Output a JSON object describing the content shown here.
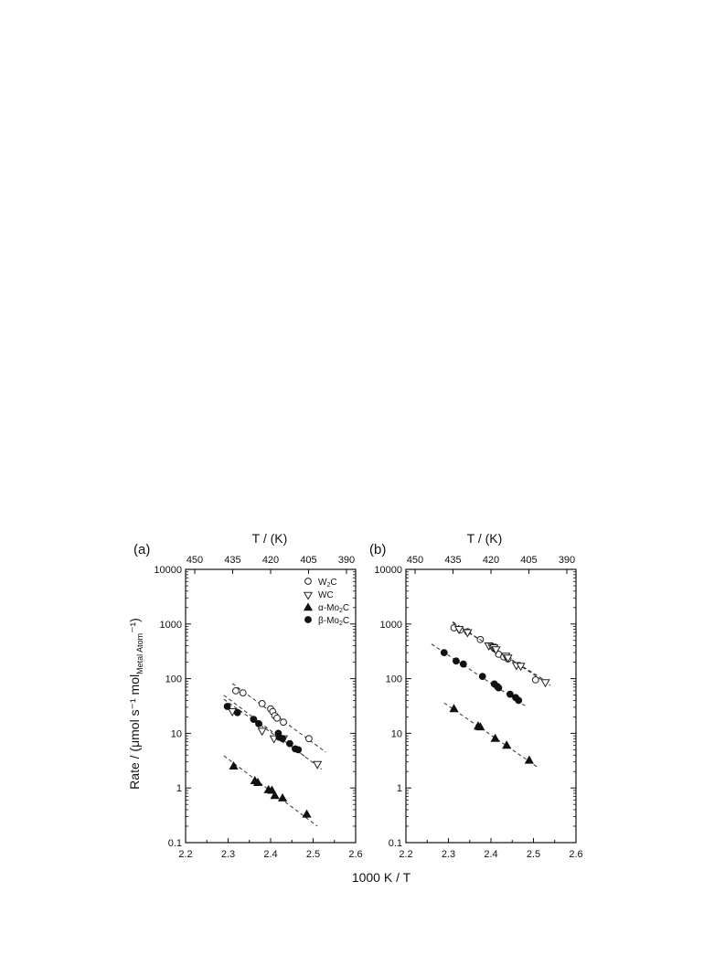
{
  "chart_data": [
    {
      "type": "scatter",
      "panel_label": "(a)",
      "xlabel": "1000 K / T",
      "ylabel": "Rate / (μmol s⁻¹ mol",
      "ylabel_sub": "Metal Atom",
      "ylabel_tail": "⁻¹)",
      "xlim": [
        2.2,
        2.6
      ],
      "ylim": [
        0.1,
        10000
      ],
      "yscale": "log",
      "x_ticks": [
        "2.2",
        "2.3",
        "2.4",
        "2.5",
        "2.6"
      ],
      "y_ticks": [
        "0.1",
        "1",
        "10",
        "100",
        "1000",
        "10000"
      ],
      "top_axis_label": "T / (K)",
      "top_ticks": [
        "450",
        "435",
        "420",
        "405",
        "390"
      ],
      "legend": [
        {
          "name": "W",
          "sub": "2",
          "tail": "C",
          "marker": "circle-open"
        },
        {
          "name": "WC",
          "sub": "",
          "tail": "",
          "marker": "triangle-down-open"
        },
        {
          "name": "α-Mo",
          "sub": "2",
          "tail": "C",
          "marker": "triangle-up-filled"
        },
        {
          "name": "β-Mo",
          "sub": "2",
          "tail": "C",
          "marker": "circle-filled"
        }
      ],
      "series": [
        {
          "marker": "circle-open",
          "points": [
            [
              2.318,
              60
            ],
            [
              2.335,
              55
            ],
            [
              2.38,
              35
            ],
            [
              2.4,
              28
            ],
            [
              2.405,
              25
            ],
            [
              2.41,
              21
            ],
            [
              2.415,
              19
            ],
            [
              2.43,
              16
            ],
            [
              2.49,
              8
            ]
          ],
          "fit": [
            [
              2.31,
              82
            ],
            [
              2.53,
              4.5
            ]
          ]
        },
        {
          "marker": "triangle-down-open",
          "points": [
            [
              2.31,
              25
            ],
            [
              2.38,
              11
            ],
            [
              2.408,
              8
            ],
            [
              2.43,
              8
            ],
            [
              2.51,
              2.7
            ]
          ],
          "fit": [
            [
              2.29,
              50
            ],
            [
              2.52,
              2.2
            ]
          ]
        },
        {
          "marker": "triangle-up-filled",
          "points": [
            [
              2.313,
              2.5
            ],
            [
              2.363,
              1.35
            ],
            [
              2.37,
              1.25
            ],
            [
              2.395,
              0.92
            ],
            [
              2.403,
              0.9
            ],
            [
              2.41,
              0.72
            ],
            [
              2.428,
              0.65
            ],
            [
              2.485,
              0.33
            ]
          ],
          "fit": [
            [
              2.29,
              3.9
            ],
            [
              2.51,
              0.2
            ]
          ]
        },
        {
          "marker": "circle-filled",
          "points": [
            [
              2.298,
              31
            ],
            [
              2.322,
              24
            ],
            [
              2.36,
              18
            ],
            [
              2.372,
              15
            ],
            [
              2.418,
              10
            ],
            [
              2.42,
              8.5
            ],
            [
              2.428,
              8
            ],
            [
              2.445,
              6.5
            ],
            [
              2.458,
              5.2
            ],
            [
              2.465,
              5
            ]
          ],
          "fit": [
            [
              2.29,
              42
            ],
            [
              2.48,
              3.8
            ]
          ]
        }
      ]
    },
    {
      "type": "scatter",
      "panel_label": "(b)",
      "xlim": [
        2.2,
        2.6
      ],
      "ylim": [
        0.1,
        10000
      ],
      "yscale": "log",
      "x_ticks": [
        "2.2",
        "2.3",
        "2.4",
        "2.5",
        "2.6"
      ],
      "y_ticks": [
        "0.1",
        "1",
        "10",
        "100",
        "1000",
        "10000"
      ],
      "top_axis_label": "T / (K)",
      "top_ticks": [
        "450",
        "435",
        "420",
        "405",
        "390"
      ],
      "series": [
        {
          "marker": "circle-open",
          "points": [
            [
              2.313,
              850
            ],
            [
              2.328,
              780
            ],
            [
              2.345,
              720
            ],
            [
              2.375,
              520
            ],
            [
              2.4,
              400
            ],
            [
              2.41,
              350
            ],
            [
              2.418,
              280
            ],
            [
              2.43,
              250
            ],
            [
              2.44,
              230
            ],
            [
              2.505,
              95
            ]
          ],
          "fit": [
            [
              2.31,
              1050
            ],
            [
              2.53,
              90
            ]
          ]
        },
        {
          "marker": "triangle-down-open",
          "points": [
            [
              2.325,
              800
            ],
            [
              2.345,
              700
            ],
            [
              2.395,
              400
            ],
            [
              2.403,
              380
            ],
            [
              2.407,
              370
            ],
            [
              2.412,
              340
            ],
            [
              2.435,
              260
            ],
            [
              2.44,
              240
            ],
            [
              2.46,
              175
            ],
            [
              2.47,
              170
            ],
            [
              2.528,
              85
            ]
          ],
          "fit": [
            [
              2.31,
              1100
            ],
            [
              2.54,
              75
            ]
          ]
        },
        {
          "marker": "triangle-up-filled",
          "points": [
            [
              2.313,
              28
            ],
            [
              2.37,
              13.5
            ],
            [
              2.375,
              13
            ],
            [
              2.41,
              8
            ],
            [
              2.437,
              6
            ],
            [
              2.49,
              3.2
            ]
          ],
          "fit": [
            [
              2.29,
              36
            ],
            [
              2.51,
              2.4
            ]
          ]
        },
        {
          "marker": "circle-filled",
          "points": [
            [
              2.29,
              300
            ],
            [
              2.318,
              210
            ],
            [
              2.335,
              185
            ],
            [
              2.38,
              110
            ],
            [
              2.408,
              80
            ],
            [
              2.415,
              72
            ],
            [
              2.418,
              68
            ],
            [
              2.445,
              52
            ],
            [
              2.458,
              45
            ],
            [
              2.465,
              40
            ]
          ],
          "fit": [
            [
              2.26,
              430
            ],
            [
              2.48,
              32
            ]
          ]
        }
      ]
    }
  ]
}
